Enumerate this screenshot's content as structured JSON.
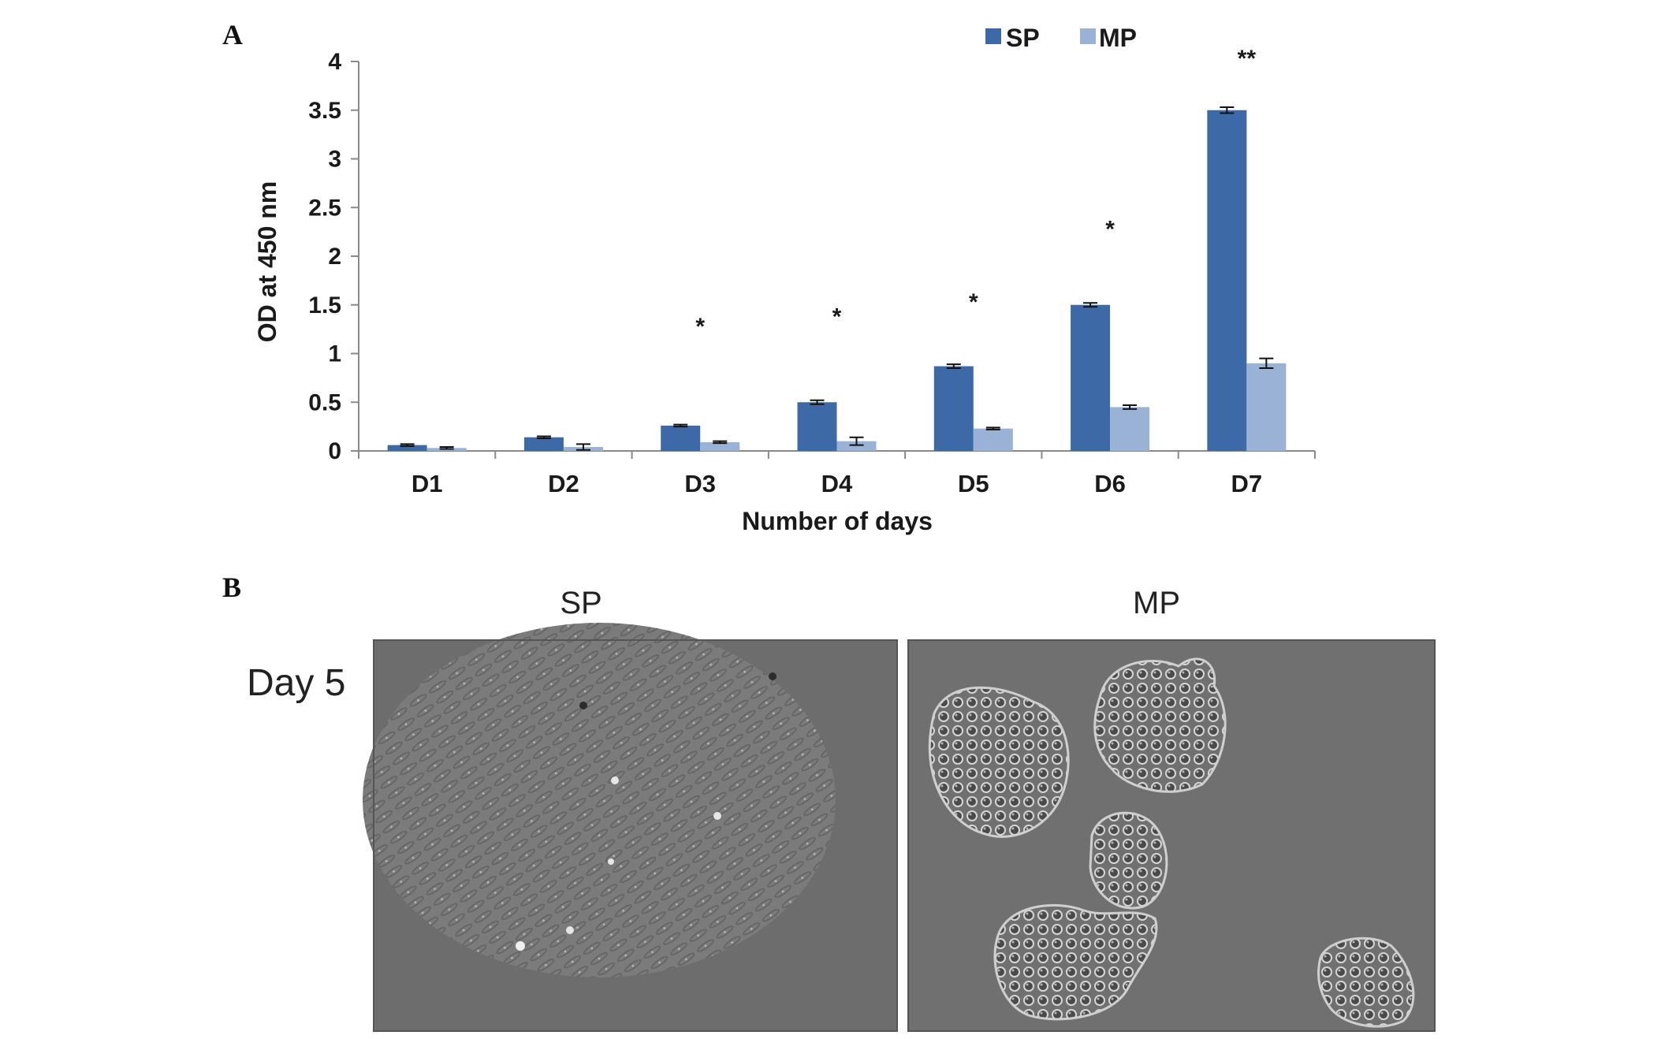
{
  "panels": {
    "a_label": "A",
    "b_label": "B"
  },
  "chart_data": {
    "type": "bar",
    "title": "",
    "xlabel": "Number of days",
    "ylabel": "OD at 450 nm",
    "categories": [
      "D1",
      "D2",
      "D3",
      "D4",
      "D5",
      "D6",
      "D7"
    ],
    "ylim": [
      0,
      4
    ],
    "yticks": [
      0,
      0.5,
      1,
      1.5,
      2,
      2.5,
      3,
      3.5,
      4
    ],
    "grid": false,
    "legend_position": "top-center",
    "series": [
      {
        "name": "SP",
        "color": "#3d6aa6",
        "values": [
          0.06,
          0.14,
          0.26,
          0.5,
          0.87,
          1.5,
          3.5
        ],
        "errors": [
          0.01,
          0.01,
          0.01,
          0.02,
          0.02,
          0.02,
          0.03
        ]
      },
      {
        "name": "MP",
        "color": "#99b2d6",
        "values": [
          0.03,
          0.04,
          0.09,
          0.1,
          0.23,
          0.45,
          0.9
        ],
        "errors": [
          0.01,
          0.03,
          0.01,
          0.04,
          0.01,
          0.02,
          0.05
        ]
      }
    ],
    "significance": [
      "",
      "",
      "*",
      "*",
      "*",
      "*",
      "**"
    ]
  },
  "micrographs": {
    "row_label": "Day 5",
    "columns": [
      "SP",
      "MP"
    ]
  }
}
